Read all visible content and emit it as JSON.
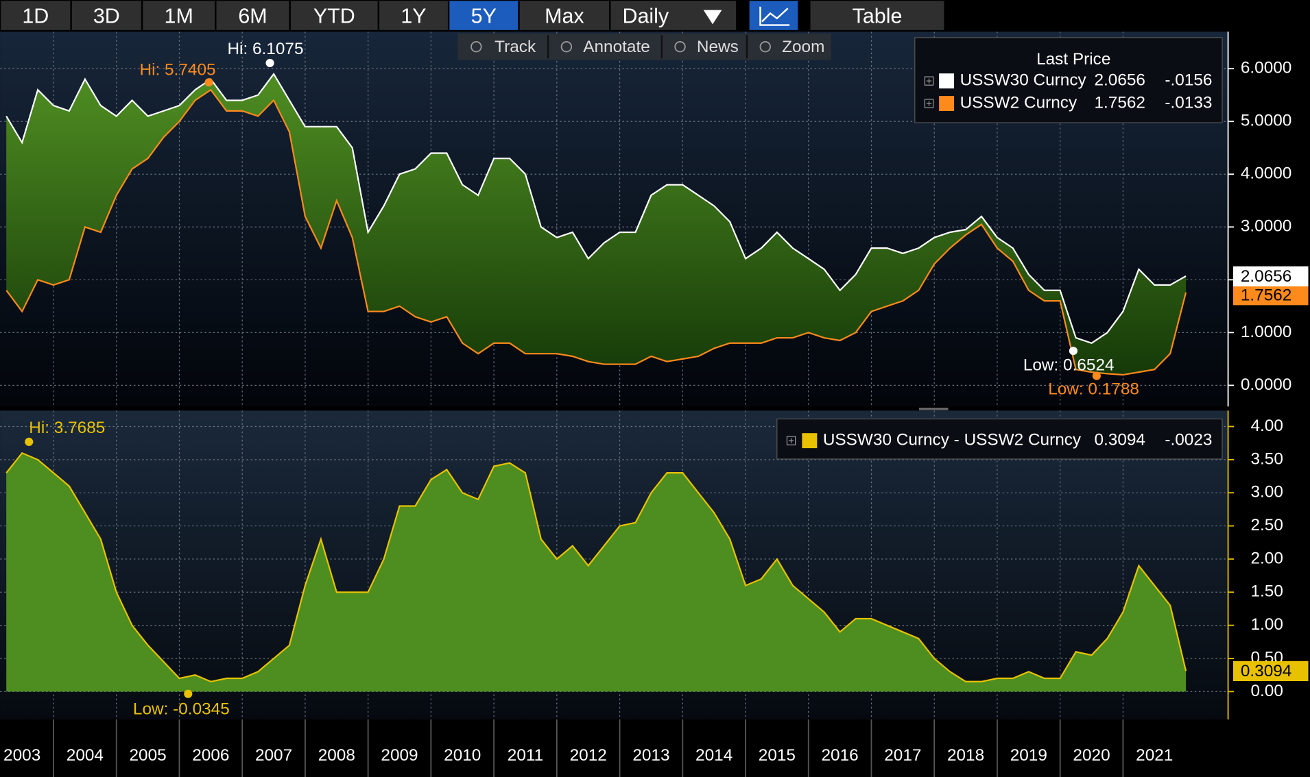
{
  "toolbar": {
    "buttons": [
      "1D",
      "3D",
      "1M",
      "6M",
      "YTD",
      "1Y",
      "5Y",
      "Max"
    ],
    "active": "5Y",
    "frequency": "Daily",
    "view": "Table"
  },
  "tools": [
    "Track",
    "Annotate",
    "News",
    "Zoom"
  ],
  "chart_data": [
    {
      "type": "line",
      "legend_title": "Last Price",
      "fill_between": true,
      "xlim": [
        2003.15,
        2022.67
      ],
      "ylim": [
        -0.4,
        6.7
      ],
      "yticks": [
        {
          "value": 6,
          "label": "6.0000"
        },
        {
          "value": 5,
          "label": "5.0000"
        },
        {
          "value": 4,
          "label": "4.0000"
        },
        {
          "value": 3,
          "label": "3.0000"
        },
        {
          "value": 2,
          "label": "2.0000"
        },
        {
          "value": 1,
          "label": "1.0000"
        },
        {
          "value": 0,
          "label": "0.0000"
        }
      ],
      "grid": true,
      "x": [
        2003.25,
        2003.5,
        2003.75,
        2004,
        2004.25,
        2004.5,
        2004.75,
        2005,
        2005.25,
        2005.5,
        2005.75,
        2006,
        2006.25,
        2006.5,
        2006.75,
        2007,
        2007.25,
        2007.5,
        2007.75,
        2008,
        2008.25,
        2008.5,
        2008.75,
        2009,
        2009.25,
        2009.5,
        2009.75,
        2010,
        2010.25,
        2010.5,
        2010.75,
        2011,
        2011.25,
        2011.5,
        2011.75,
        2012,
        2012.25,
        2012.5,
        2012.75,
        2013,
        2013.25,
        2013.5,
        2013.75,
        2014,
        2014.25,
        2014.5,
        2014.75,
        2015,
        2015.25,
        2015.5,
        2015.75,
        2016,
        2016.25,
        2016.5,
        2016.75,
        2017,
        2017.25,
        2017.5,
        2017.75,
        2018,
        2018.25,
        2018.5,
        2018.75,
        2019,
        2019.25,
        2019.5,
        2019.75,
        2020,
        2020.25,
        2020.5,
        2020.75,
        2021,
        2021.25,
        2021.5,
        2021.75,
        2022
      ],
      "series": [
        {
          "name": "USSW30 Curncy",
          "color": "#ffffff",
          "last": 2.0656,
          "change": {
            "value": -0.0156,
            "label": "-.0156"
          },
          "values": [
            5.1,
            4.6,
            5.6,
            5.3,
            5.2,
            5.8,
            5.3,
            5.1,
            5.4,
            5.1,
            5.2,
            5.3,
            5.6,
            5.8,
            5.4,
            5.4,
            5.5,
            5.9,
            5.4,
            4.9,
            4.9,
            4.9,
            4.5,
            2.9,
            3.4,
            4.0,
            4.1,
            4.4,
            4.4,
            3.8,
            3.6,
            4.3,
            4.3,
            4.0,
            3.0,
            2.8,
            2.9,
            2.4,
            2.7,
            2.9,
            2.9,
            3.6,
            3.8,
            3.8,
            3.6,
            3.4,
            3.1,
            2.4,
            2.6,
            2.9,
            2.6,
            2.4,
            2.2,
            1.8,
            2.1,
            2.6,
            2.6,
            2.5,
            2.6,
            2.8,
            2.9,
            2.95,
            3.2,
            2.8,
            2.6,
            2.1,
            1.8,
            1.8,
            0.9,
            0.8,
            1.0,
            1.4,
            2.2,
            1.9,
            1.9,
            2.07
          ]
        },
        {
          "name": "USSW2 Curncy",
          "color": "#ff8a1c",
          "last": 1.7562,
          "change": {
            "value": -0.0133,
            "label": "-.0133"
          },
          "values": [
            1.8,
            1.4,
            2.0,
            1.9,
            2.0,
            3.0,
            2.9,
            3.6,
            4.1,
            4.3,
            4.7,
            5.0,
            5.4,
            5.6,
            5.2,
            5.2,
            5.1,
            5.4,
            4.8,
            3.2,
            2.6,
            3.5,
            2.8,
            1.4,
            1.4,
            1.5,
            1.3,
            1.2,
            1.3,
            0.8,
            0.6,
            0.8,
            0.8,
            0.6,
            0.6,
            0.6,
            0.55,
            0.45,
            0.4,
            0.4,
            0.4,
            0.55,
            0.45,
            0.5,
            0.55,
            0.7,
            0.8,
            0.8,
            0.8,
            0.9,
            0.9,
            1.0,
            0.9,
            0.85,
            1.0,
            1.4,
            1.5,
            1.6,
            1.8,
            2.3,
            2.6,
            2.85,
            3.05,
            2.6,
            2.35,
            1.8,
            1.6,
            1.6,
            0.3,
            0.25,
            0.22,
            0.2,
            0.25,
            0.3,
            0.6,
            1.76
          ]
        }
      ],
      "annotations": [
        {
          "text": "Hi: 6.1075",
          "x": 2007.44,
          "y": 6.1075,
          "color": "#ffffff"
        },
        {
          "text": "Hi: 5.7405",
          "x": 2006.47,
          "y": 5.7405,
          "color": "#ff8a1c"
        },
        {
          "text": "Low: 0.6524",
          "x": 2020.21,
          "y": 0.6524,
          "color": "#ffffff"
        },
        {
          "text": "Low: 0.1788",
          "x": 2020.58,
          "y": 0.1788,
          "color": "#ff8a1c"
        }
      ]
    },
    {
      "type": "area",
      "xlim": [
        2003.15,
        2022.67
      ],
      "ylim": [
        -0.42,
        4.24
      ],
      "xticks": [
        2003,
        2004,
        2005,
        2006,
        2007,
        2008,
        2009,
        2010,
        2011,
        2012,
        2013,
        2014,
        2015,
        2016,
        2017,
        2018,
        2019,
        2020,
        2021
      ],
      "yticks": [
        {
          "value": 4,
          "label": "4.00"
        },
        {
          "value": 3.5,
          "label": "3.50"
        },
        {
          "value": 3,
          "label": "3.00"
        },
        {
          "value": 2.5,
          "label": "2.50"
        },
        {
          "value": 2,
          "label": "2.00"
        },
        {
          "value": 1.5,
          "label": "1.50"
        },
        {
          "value": 1,
          "label": "1.00"
        },
        {
          "value": 0.5,
          "label": "0.50"
        },
        {
          "value": 0,
          "label": "0.00"
        }
      ],
      "grid": true,
      "x": [
        2003.25,
        2003.5,
        2003.75,
        2004,
        2004.25,
        2004.5,
        2004.75,
        2005,
        2005.25,
        2005.5,
        2005.75,
        2006,
        2006.25,
        2006.5,
        2006.75,
        2007,
        2007.25,
        2007.5,
        2007.75,
        2008,
        2008.25,
        2008.5,
        2008.75,
        2009,
        2009.25,
        2009.5,
        2009.75,
        2010,
        2010.25,
        2010.5,
        2010.75,
        2011,
        2011.25,
        2011.5,
        2011.75,
        2012,
        2012.25,
        2012.5,
        2012.75,
        2013,
        2013.25,
        2013.5,
        2013.75,
        2014,
        2014.25,
        2014.5,
        2014.75,
        2015,
        2015.25,
        2015.5,
        2015.75,
        2016,
        2016.25,
        2016.5,
        2016.75,
        2017,
        2017.25,
        2017.5,
        2017.75,
        2018,
        2018.25,
        2018.5,
        2018.75,
        2019,
        2019.25,
        2019.5,
        2019.75,
        2020,
        2020.25,
        2020.5,
        2020.75,
        2021,
        2021.25,
        2021.5,
        2021.75,
        2022
      ],
      "series": [
        {
          "name": "USSW30 Curncy - USSW2 Curncy",
          "color": "#e8c200",
          "fill": "#4e8e20",
          "last": 0.3094,
          "change": {
            "value": -0.0023,
            "label": "-.0023"
          },
          "values": [
            3.3,
            3.6,
            3.5,
            3.3,
            3.1,
            2.7,
            2.3,
            1.5,
            1.0,
            0.7,
            0.45,
            0.2,
            0.25,
            0.15,
            0.2,
            0.2,
            0.3,
            0.5,
            0.7,
            1.6,
            2.3,
            1.5,
            1.5,
            1.5,
            2.0,
            2.8,
            2.8,
            3.2,
            3.35,
            3.0,
            2.9,
            3.4,
            3.45,
            3.3,
            2.3,
            2.0,
            2.2,
            1.9,
            2.2,
            2.5,
            2.55,
            3.0,
            3.3,
            3.3,
            3.0,
            2.7,
            2.3,
            1.6,
            1.7,
            2.0,
            1.6,
            1.4,
            1.2,
            0.9,
            1.1,
            1.1,
            1.0,
            0.9,
            0.8,
            0.5,
            0.3,
            0.15,
            0.15,
            0.2,
            0.2,
            0.3,
            0.2,
            0.2,
            0.6,
            0.55,
            0.8,
            1.2,
            1.9,
            1.6,
            1.3,
            0.31
          ]
        }
      ],
      "annotations": [
        {
          "text": "Hi: 3.7685",
          "x": 2003.61,
          "y": 3.7685,
          "color": "#e8c200"
        },
        {
          "text": "Low: -0.0345",
          "x": 2006.14,
          "y": -0.0345,
          "color": "#e8c200"
        }
      ]
    }
  ]
}
